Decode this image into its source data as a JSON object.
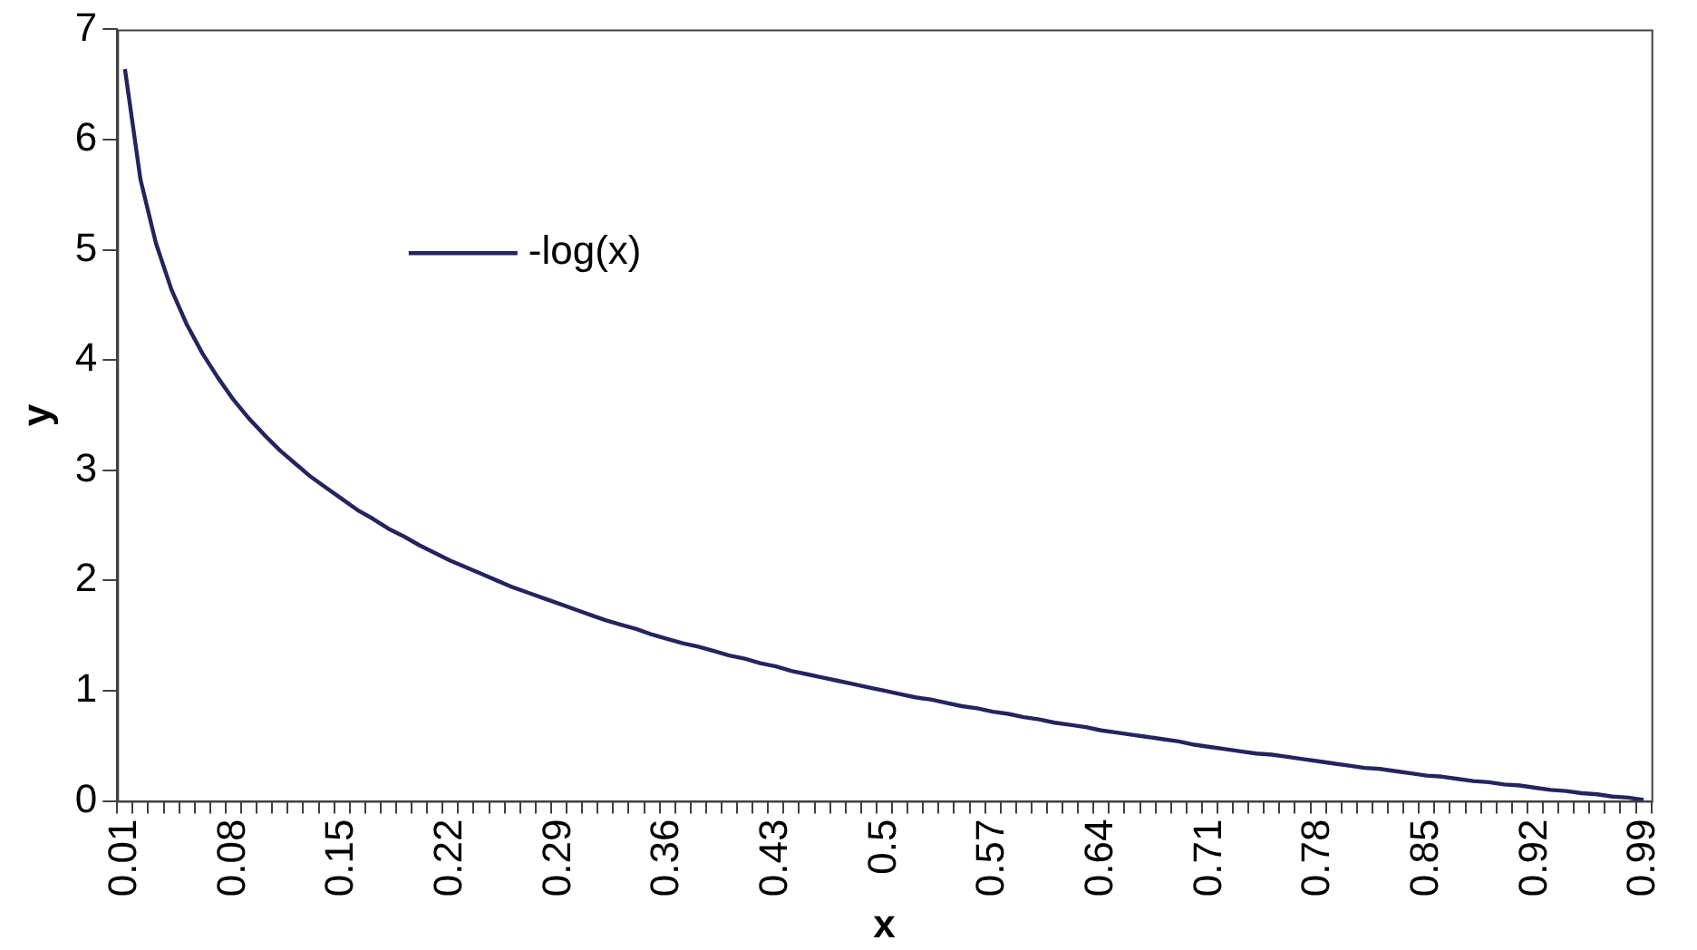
{
  "chart_data": {
    "type": "line",
    "xlabel": "x",
    "ylabel": "y",
    "categories": [
      "0.01",
      null,
      null,
      null,
      null,
      null,
      null,
      "0.08",
      null,
      null,
      null,
      null,
      null,
      null,
      "0.15",
      null,
      null,
      null,
      null,
      null,
      null,
      "0.22",
      null,
      null,
      null,
      null,
      null,
      null,
      "0.29",
      null,
      null,
      null,
      null,
      null,
      null,
      "0.36",
      null,
      null,
      null,
      null,
      null,
      null,
      "0.43",
      null,
      null,
      null,
      null,
      null,
      null,
      "0.5",
      null,
      null,
      null,
      null,
      null,
      null,
      "0.57",
      null,
      null,
      null,
      null,
      null,
      null,
      "0.64",
      null,
      null,
      null,
      null,
      null,
      null,
      "0.71",
      null,
      null,
      null,
      null,
      null,
      null,
      "0.78",
      null,
      null,
      null,
      null,
      null,
      null,
      "0.85",
      null,
      null,
      null,
      null,
      null,
      null,
      "0.92",
      null,
      null,
      null,
      null,
      null,
      null,
      "0.99"
    ],
    "series": [
      {
        "name": "-log(x)",
        "color": "#24245e",
        "values": [
          6.64,
          5.64,
          5.06,
          4.64,
          4.32,
          4.06,
          3.84,
          3.64,
          3.47,
          3.32,
          3.18,
          3.06,
          2.94,
          2.84,
          2.74,
          2.64,
          2.56,
          2.47,
          2.4,
          2.32,
          2.25,
          2.18,
          2.12,
          2.06,
          2.0,
          1.94,
          1.89,
          1.84,
          1.79,
          1.74,
          1.69,
          1.64,
          1.6,
          1.56,
          1.51,
          1.47,
          1.43,
          1.4,
          1.36,
          1.32,
          1.29,
          1.25,
          1.22,
          1.18,
          1.15,
          1.12,
          1.09,
          1.06,
          1.03,
          1.0,
          0.97,
          0.94,
          0.92,
          0.89,
          0.86,
          0.84,
          0.81,
          0.79,
          0.76,
          0.74,
          0.71,
          0.69,
          0.67,
          0.64,
          0.62,
          0.6,
          0.58,
          0.56,
          0.54,
          0.51,
          0.49,
          0.47,
          0.45,
          0.43,
          0.42,
          0.4,
          0.38,
          0.36,
          0.34,
          0.32,
          0.3,
          0.29,
          0.27,
          0.25,
          0.23,
          0.22,
          0.2,
          0.18,
          0.17,
          0.15,
          0.14,
          0.12,
          0.1,
          0.09,
          0.07,
          0.06,
          0.04,
          0.03,
          0.01
        ]
      }
    ],
    "ylim": [
      0,
      7
    ],
    "yticks": [
      0,
      1,
      2,
      3,
      4,
      5,
      6,
      7
    ],
    "grid": false,
    "legend": "top left",
    "marker": "none",
    "line_style": "solid"
  }
}
